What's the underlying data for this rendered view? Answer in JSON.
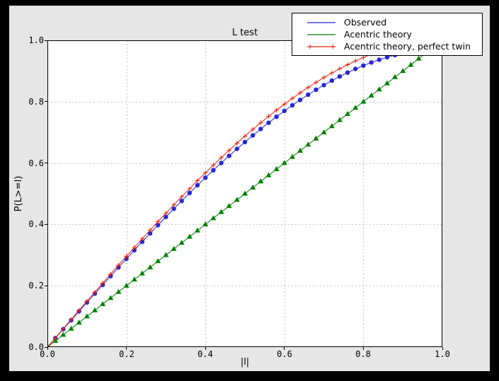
{
  "window": {
    "page_bg": "#000000",
    "figure_bg": "#e6e6e6",
    "plot_bg": "#ffffff",
    "grid_color": "#c4c4c4",
    "frame_color": "#000000"
  },
  "chart_data": {
    "type": "line",
    "title": "L test",
    "xlabel": "|l|",
    "ylabel": "P(L>=l)",
    "xlim": [
      0,
      1
    ],
    "ylim": [
      0,
      1
    ],
    "xticks": [
      "0.0",
      "0.2",
      "0.4",
      "0.6",
      "0.8",
      "1.0"
    ],
    "yticks": [
      "0.0",
      "0.2",
      "0.4",
      "0.6",
      "0.8",
      "1.0"
    ],
    "grid": true,
    "grid_style": "dashed",
    "legend_position": "upper right",
    "x": [
      0,
      0.02,
      0.04,
      0.06,
      0.08,
      0.1,
      0.12,
      0.14,
      0.16,
      0.18,
      0.2,
      0.22,
      0.24,
      0.26,
      0.28,
      0.3,
      0.32,
      0.34,
      0.36,
      0.38,
      0.4,
      0.42,
      0.44,
      0.46,
      0.48,
      0.5,
      0.52,
      0.54,
      0.56,
      0.58,
      0.6,
      0.62,
      0.64,
      0.66,
      0.68,
      0.7,
      0.72,
      0.74,
      0.76,
      0.78,
      0.8,
      0.82,
      0.84,
      0.86,
      0.88,
      0.9,
      0.92,
      0.94,
      0.96,
      0.98,
      1.0
    ],
    "series": [
      {
        "name": "Observed",
        "color": "#2626d8",
        "marker": "circle",
        "values": [
          0,
          0.0292,
          0.0583,
          0.0874,
          0.1163,
          0.1453,
          0.1741,
          0.2028,
          0.2313,
          0.2596,
          0.2877,
          0.3156,
          0.3432,
          0.3705,
          0.3975,
          0.4243,
          0.4506,
          0.4766,
          0.5022,
          0.5274,
          0.5521,
          0.5764,
          0.6001,
          0.6233,
          0.6461,
          0.6683,
          0.6898,
          0.7108,
          0.7311,
          0.7508,
          0.7698,
          0.7881,
          0.8057,
          0.8226,
          0.8386,
          0.8539,
          0.8684,
          0.882,
          0.8947,
          0.9066,
          0.9176,
          0.9276,
          0.9366,
          0.9448,
          0.9519,
          0.9579,
          0.963,
          0.9668,
          0.9697,
          0.9714,
          0.972
        ]
      },
      {
        "name": "Acentric theory",
        "color": "#007f00",
        "marker": "triangle-up",
        "values": [
          0,
          0.02,
          0.04,
          0.06,
          0.08,
          0.1,
          0.12,
          0.14,
          0.16,
          0.18,
          0.2,
          0.22,
          0.24,
          0.26,
          0.28,
          0.3,
          0.32,
          0.34,
          0.36,
          0.38,
          0.4,
          0.42,
          0.44,
          0.46,
          0.48,
          0.5,
          0.52,
          0.54,
          0.56,
          0.58,
          0.6,
          0.62,
          0.64,
          0.66,
          0.68,
          0.7,
          0.72,
          0.74,
          0.76,
          0.78,
          0.8,
          0.82,
          0.84,
          0.86,
          0.88,
          0.9,
          0.92,
          0.94,
          0.96,
          0.98,
          1.0
        ]
      },
      {
        "name": "Acentric theory, perfect twin",
        "color": "#ee2211",
        "marker": "plus",
        "values": [
          0,
          0.03,
          0.06,
          0.0899,
          0.1197,
          0.1495,
          0.1791,
          0.2086,
          0.238,
          0.2671,
          0.296,
          0.3247,
          0.3531,
          0.3812,
          0.409,
          0.4365,
          0.4636,
          0.4903,
          0.5167,
          0.5426,
          0.568,
          0.593,
          0.6174,
          0.6413,
          0.6647,
          0.6875,
          0.7097,
          0.7313,
          0.7522,
          0.7724,
          0.792,
          0.8108,
          0.8289,
          0.8463,
          0.8628,
          0.8785,
          0.8934,
          0.9074,
          0.9205,
          0.9327,
          0.944,
          0.9543,
          0.9636,
          0.972,
          0.9793,
          0.9855,
          0.9907,
          0.9947,
          0.9976,
          0.9994,
          1.0
        ]
      }
    ]
  }
}
